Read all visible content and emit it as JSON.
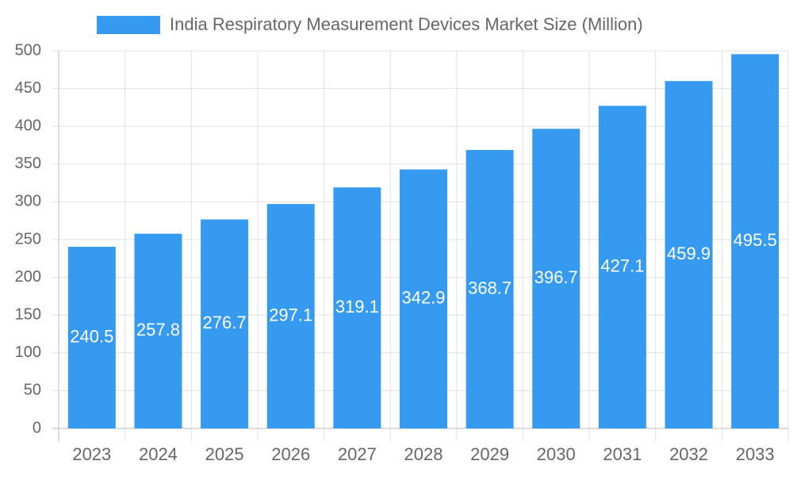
{
  "chart_data": {
    "type": "bar",
    "categories": [
      "2023",
      "2024",
      "2025",
      "2026",
      "2027",
      "2028",
      "2029",
      "2030",
      "2031",
      "2032",
      "2033"
    ],
    "series": [
      {
        "name": "India Respiratory Measurement Devices Market Size (Million)",
        "color": "#369bf0",
        "values": [
          240.5,
          257.8,
          276.7,
          297.1,
          319.1,
          342.9,
          368.7,
          396.7,
          427.1,
          459.9,
          495.5
        ]
      }
    ],
    "ylim": [
      0,
      500
    ],
    "yticks": [
      0,
      50,
      100,
      150,
      200,
      250,
      300,
      350,
      400,
      450,
      500
    ],
    "grid": true,
    "legend": "top"
  }
}
